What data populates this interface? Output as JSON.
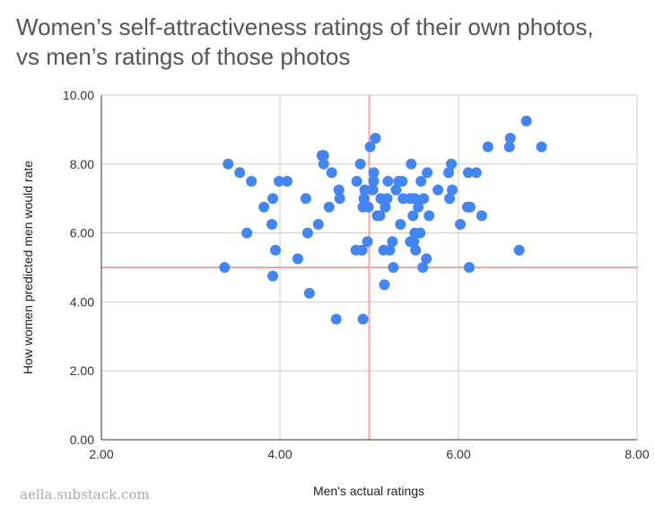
{
  "chart_data": {
    "type": "scatter",
    "title_lines": [
      "Women’s self-attractiveness ratings of their own photos,",
      "vs men’s ratings of those photos"
    ],
    "xlabel": "Men's actual ratings",
    "ylabel": "How women predicted men would rate",
    "xlim": [
      2,
      8
    ],
    "ylim": [
      0,
      10
    ],
    "x_ticks": [
      2,
      4,
      6,
      8
    ],
    "y_ticks": [
      0,
      2,
      4,
      6,
      8,
      10
    ],
    "x_tick_labels": [
      "2.00",
      "4.00",
      "6.00",
      "8.00"
    ],
    "y_tick_labels": [
      "0.00",
      "2.00",
      "4.00",
      "6.00",
      "8.00",
      "10.00"
    ],
    "reference_lines": {
      "x": 5,
      "y": 5
    },
    "point_color": "#4285f4",
    "reference_color": "#f4a6a6",
    "grid_color": "#cccccc",
    "points": [
      [
        3.38,
        5.0
      ],
      [
        3.42,
        8.0
      ],
      [
        3.55,
        7.75
      ],
      [
        3.63,
        6.0
      ],
      [
        3.68,
        7.5
      ],
      [
        3.82,
        6.75
      ],
      [
        3.91,
        6.25
      ],
      [
        3.92,
        7.0
      ],
      [
        3.92,
        4.75
      ],
      [
        3.95,
        5.5
      ],
      [
        3.99,
        7.5
      ],
      [
        4.08,
        7.5
      ],
      [
        4.2,
        5.25
      ],
      [
        4.29,
        7.0
      ],
      [
        4.31,
        6.0
      ],
      [
        4.33,
        4.25
      ],
      [
        4.43,
        6.25
      ],
      [
        4.47,
        8.25
      ],
      [
        4.49,
        8.0
      ],
      [
        4.49,
        8.25
      ],
      [
        4.55,
        6.75
      ],
      [
        4.58,
        7.75
      ],
      [
        4.63,
        3.5
      ],
      [
        4.66,
        7.25
      ],
      [
        4.67,
        7.0
      ],
      [
        4.85,
        5.5
      ],
      [
        4.86,
        7.5
      ],
      [
        4.9,
        8.0
      ],
      [
        4.92,
        5.5
      ],
      [
        4.93,
        3.5
      ],
      [
        4.93,
        6.75
      ],
      [
        4.94,
        7.0
      ],
      [
        4.95,
        7.25
      ],
      [
        4.98,
        5.75
      ],
      [
        4.99,
        6.75
      ],
      [
        5.01,
        8.5
      ],
      [
        5.04,
        7.25
      ],
      [
        5.05,
        7.75
      ],
      [
        5.05,
        7.5
      ],
      [
        5.07,
        8.75
      ],
      [
        5.09,
        6.5
      ],
      [
        5.12,
        6.5
      ],
      [
        5.13,
        7.0
      ],
      [
        5.16,
        5.5
      ],
      [
        5.17,
        4.5
      ],
      [
        5.18,
        6.75
      ],
      [
        5.2,
        7.0
      ],
      [
        5.21,
        7.5
      ],
      [
        5.23,
        5.5
      ],
      [
        5.26,
        5.75
      ],
      [
        5.27,
        5.0
      ],
      [
        5.3,
        7.25
      ],
      [
        5.33,
        7.5
      ],
      [
        5.35,
        6.25
      ],
      [
        5.37,
        7.5
      ],
      [
        5.38,
        7.0
      ],
      [
        5.46,
        7.0
      ],
      [
        5.46,
        5.75
      ],
      [
        5.47,
        8.0
      ],
      [
        5.49,
        6.5
      ],
      [
        5.5,
        5.75
      ],
      [
        5.51,
        7.0
      ],
      [
        5.51,
        6.0
      ],
      [
        5.52,
        5.5
      ],
      [
        5.55,
        6.75
      ],
      [
        5.57,
        6.0
      ],
      [
        5.58,
        7.5
      ],
      [
        5.6,
        5.0
      ],
      [
        5.61,
        7.0
      ],
      [
        5.64,
        5.25
      ],
      [
        5.65,
        7.75
      ],
      [
        5.67,
        6.5
      ],
      [
        5.77,
        7.25
      ],
      [
        5.89,
        7.75
      ],
      [
        5.9,
        7.0
      ],
      [
        5.92,
        8.0
      ],
      [
        5.93,
        7.25
      ],
      [
        6.02,
        6.25
      ],
      [
        6.1,
        6.75
      ],
      [
        6.11,
        7.75
      ],
      [
        6.12,
        5.0
      ],
      [
        6.13,
        6.75
      ],
      [
        6.2,
        7.75
      ],
      [
        6.26,
        6.5
      ],
      [
        6.33,
        8.5
      ],
      [
        6.57,
        8.5
      ],
      [
        6.58,
        8.75
      ],
      [
        6.68,
        5.5
      ],
      [
        6.76,
        9.25
      ],
      [
        6.93,
        8.5
      ]
    ]
  },
  "watermark": "aella.substack.com"
}
